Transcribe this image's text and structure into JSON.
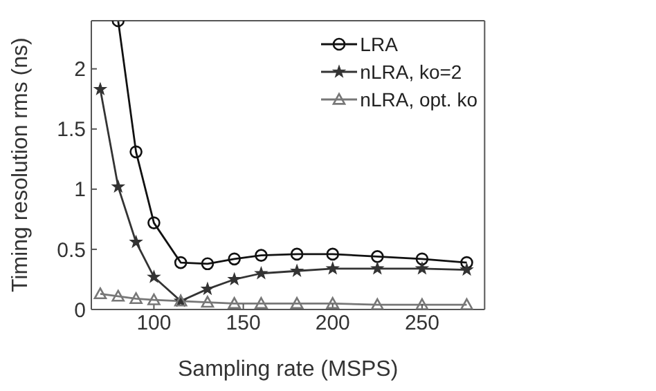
{
  "chart_data": {
    "type": "line",
    "xlabel": "Sampling rate (MSPS)",
    "ylabel": "Timing resolution rms (ns)",
    "x": [
      70,
      80,
      90,
      100,
      115,
      130,
      145,
      160,
      180,
      200,
      225,
      250,
      275
    ],
    "xlim": [
      65,
      285
    ],
    "xticks": [
      100,
      150,
      200,
      250
    ],
    "ylim": [
      0,
      2.4
    ],
    "yticks": [
      0,
      0.5,
      1,
      1.5,
      2
    ],
    "grid": false,
    "legend": "top right",
    "line_style": "solid",
    "series": [
      {
        "name": "LRA",
        "color": "#111111",
        "marker": "circle",
        "values": [
          null,
          2.4,
          1.31,
          0.72,
          0.39,
          0.38,
          0.42,
          0.45,
          0.46,
          0.46,
          0.44,
          0.42,
          0.39
        ]
      },
      {
        "name": "nLRA,  ko=2",
        "color": "#333333",
        "marker": "star",
        "values": [
          1.83,
          1.02,
          0.56,
          0.27,
          0.07,
          0.17,
          0.25,
          0.3,
          0.32,
          0.34,
          0.34,
          0.34,
          0.33
        ]
      },
      {
        "name": "nLRA, opt. ko",
        "color": "#777777",
        "marker": "triangle",
        "values": [
          0.13,
          0.11,
          0.09,
          0.08,
          0.07,
          0.06,
          0.05,
          0.05,
          0.05,
          0.05,
          0.04,
          0.04,
          0.04
        ]
      }
    ]
  }
}
